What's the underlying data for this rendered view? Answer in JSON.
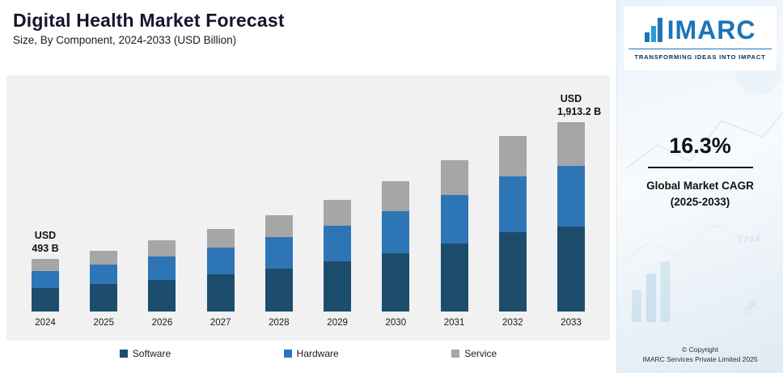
{
  "header": {
    "title": "Digital Health Market Forecast",
    "subtitle": "Size, By Component, 2024-2033 (USD Billion)"
  },
  "chart_data": {
    "type": "bar",
    "stacked": true,
    "title": "Digital Health Market Forecast",
    "subtitle": "Size, By Component, 2024-2033 (USD Billion)",
    "categories": [
      "2024",
      "2025",
      "2026",
      "2027",
      "2028",
      "2029",
      "2030",
      "2031",
      "2032",
      "2033"
    ],
    "series": [
      {
        "name": "Software",
        "color": "#1d4d6d",
        "values": [
          222,
          258,
          300,
          349,
          406,
          472,
          549,
          638,
          742,
          861
        ]
      },
      {
        "name": "Hardware",
        "color": "#2e75b6",
        "values": [
          158,
          183,
          213,
          248,
          289,
          336,
          390,
          454,
          528,
          612
        ]
      },
      {
        "name": "Service",
        "color": "#a6a6a6",
        "values": [
          113,
          132,
          154,
          178,
          207,
          241,
          281,
          327,
          380,
          440.2
        ]
      }
    ],
    "totals": [
      493,
      573,
      667,
      775,
      902,
      1049,
      1220,
      1419,
      1650,
      1913.2
    ],
    "annotations": [
      {
        "category": "2024",
        "lines": [
          "USD",
          "493 B"
        ]
      },
      {
        "category": "2033",
        "lines": [
          "USD",
          "1,913.2 B"
        ]
      }
    ],
    "ylim": [
      0,
      2050
    ],
    "grid": false,
    "legend_position": "bottom"
  },
  "sidebar": {
    "logo_text": "IMARC",
    "tagline": "TRANSFORMING IDEAS INTO IMPACT",
    "cagr_value": "16.3%",
    "cagr_label_line1": "Global Market CAGR",
    "cagr_label_line2": "(2025-2033)",
    "copyright_line1": "© Copyright",
    "copyright_line2": "IMARC Services Private Limited 2025"
  }
}
